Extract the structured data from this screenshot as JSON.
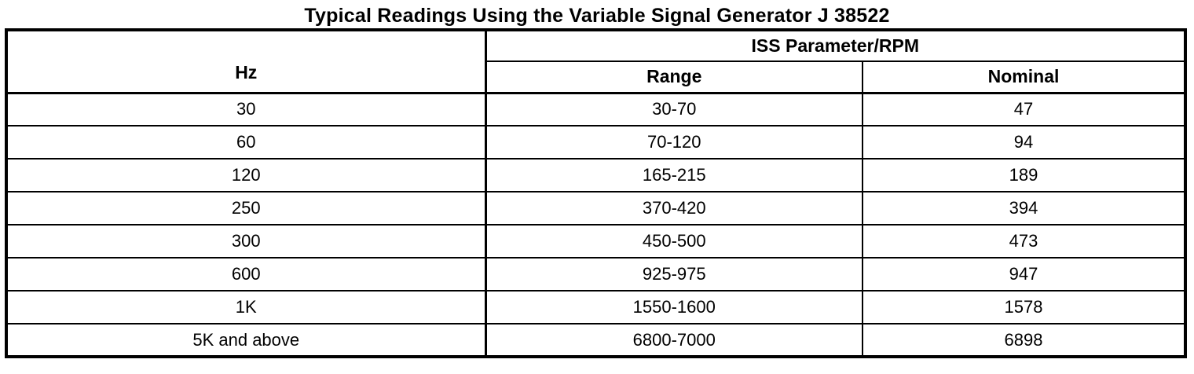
{
  "page": {
    "title": "Typical Readings Using the Variable Signal Generator J 38522"
  },
  "table": {
    "hz_header": "Hz",
    "group_header": "ISS Parameter/RPM",
    "range_header": "Range",
    "nominal_header": "Nominal",
    "rows": [
      {
        "hz": "30",
        "range": "30-70",
        "nominal": "47"
      },
      {
        "hz": "60",
        "range": "70-120",
        "nominal": "94"
      },
      {
        "hz": "120",
        "range": "165-215",
        "nominal": "189"
      },
      {
        "hz": "250",
        "range": "370-420",
        "nominal": "394"
      },
      {
        "hz": "300",
        "range": "450-500",
        "nominal": "473"
      },
      {
        "hz": "600",
        "range": "925-975",
        "nominal": "947"
      },
      {
        "hz": "1K",
        "range": "1550-1600",
        "nominal": "1578"
      },
      {
        "hz": "5K and above",
        "range": "6800-7000",
        "nominal": "6898"
      }
    ]
  },
  "colors": {
    "text": "#000000",
    "border": "#000000",
    "background": "#ffffff"
  }
}
